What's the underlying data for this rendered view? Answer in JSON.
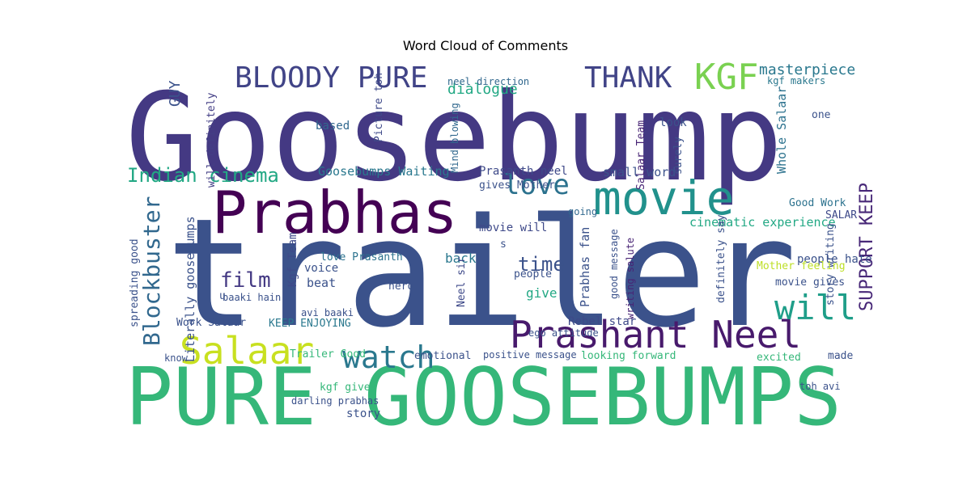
{
  "chart_data": {
    "type": "wordcloud",
    "title": "Word Cloud of Comments",
    "colormap": "viridis",
    "background": "#ffffff",
    "words": [
      {
        "text": "Goosebump",
        "color": "#443983"
      },
      {
        "text": "trailer",
        "color": "#3b528b"
      },
      {
        "text": "PURE GOOSEBUMPS",
        "color": "#35b779"
      },
      {
        "text": "Prabhas",
        "color": "#440154"
      },
      {
        "text": "movie",
        "color": "#21918c"
      },
      {
        "text": "Prashant Neel",
        "color": "#481a6c"
      },
      {
        "text": "Salaar",
        "color": "#c8e020"
      },
      {
        "text": "watch",
        "color": "#2a788e"
      },
      {
        "text": "will",
        "color": "#1f9e89"
      },
      {
        "text": "KGF",
        "color": "#7ad151"
      },
      {
        "text": "BLOODY PURE",
        "color": "#414487"
      },
      {
        "text": "THANK",
        "color": "#414487"
      },
      {
        "text": "love",
        "color": "#2c728e"
      },
      {
        "text": "Indian cinema",
        "color": "#22a884"
      },
      {
        "text": "Blockbuster",
        "color": "#31688e"
      },
      {
        "text": "film",
        "color": "#443983"
      },
      {
        "text": "time",
        "color": "#3b528b"
      },
      {
        "text": "SUPPORT KEEP",
        "color": "#482878"
      },
      {
        "text": "masterpiece",
        "color": "#2a788e"
      },
      {
        "text": "dialogue",
        "color": "#22a884"
      },
      {
        "text": "Goosebumps Waiting",
        "color": "#2a788e"
      },
      {
        "text": "Prasanth neel",
        "color": "#3e4989"
      },
      {
        "text": "cinematic experience",
        "color": "#22a884"
      },
      {
        "text": "Literally goosebumps",
        "color": "#3b528b"
      },
      {
        "text": "Prabhas fan",
        "color": "#3b528b"
      },
      {
        "text": "Whole Salaar",
        "color": "#2c728e"
      },
      {
        "text": "Salaar Team",
        "color": "#482475"
      },
      {
        "text": "Kgf Team",
        "color": "#3e4989"
      },
      {
        "text": "neel direction",
        "color": "#31688e"
      },
      {
        "text": "kgf makers",
        "color": "#2a788e"
      },
      {
        "text": "GUY",
        "color": "#3b528b"
      },
      {
        "text": "based",
        "color": "#31688e"
      },
      {
        "text": "will definitely",
        "color": "#433e85"
      },
      {
        "text": "Picture toh",
        "color": "#3e4989"
      },
      {
        "text": "Mind blowing",
        "color": "#31688e"
      },
      {
        "text": "small word",
        "color": "#3b528b"
      },
      {
        "text": "gives Mother",
        "color": "#3b528b"
      },
      {
        "text": "movie will",
        "color": "#3e4989"
      },
      {
        "text": "going",
        "color": "#31688e"
      },
      {
        "text": "spreading good",
        "color": "#3b528b"
      },
      {
        "text": "Good Work",
        "color": "#2c728e"
      },
      {
        "text": "SALAR",
        "color": "#3e4989"
      },
      {
        "text": "love Prasanth",
        "color": "#2c728e"
      },
      {
        "text": "voice",
        "color": "#3b528b"
      },
      {
        "text": "beat",
        "color": "#3b528b"
      },
      {
        "text": "back",
        "color": "#2a788e"
      },
      {
        "text": "people",
        "color": "#3b528b"
      },
      {
        "text": "give",
        "color": "#22a884"
      },
      {
        "text": "hero",
        "color": "#3b528b"
      },
      {
        "text": "Neel sir",
        "color": "#3e4989"
      },
      {
        "text": "good message",
        "color": "#3b528b"
      },
      {
        "text": "writing salute",
        "color": "#482475"
      },
      {
        "text": "definitely say",
        "color": "#3b528b"
      },
      {
        "text": "story writing",
        "color": "#3b528b"
      },
      {
        "text": "people hate",
        "color": "#3b528b"
      },
      {
        "text": "Mother feeling",
        "color": "#bddf26"
      },
      {
        "text": "movie gives",
        "color": "#3b528b"
      },
      {
        "text": "Work Salaar",
        "color": "#3b528b"
      },
      {
        "text": "KEEP ENJOYING",
        "color": "#2a788e"
      },
      {
        "text": "Rebel star",
        "color": "#3e4989"
      },
      {
        "text": "avi baaki",
        "color": "#3b528b"
      },
      {
        "text": "baaki hain",
        "color": "#3b528b"
      },
      {
        "text": "emotional",
        "color": "#3b528b"
      },
      {
        "text": "positive message",
        "color": "#3b528b"
      },
      {
        "text": "looking forward",
        "color": "#35b779"
      },
      {
        "text": "excited",
        "color": "#35b779"
      },
      {
        "text": "made",
        "color": "#3b528b"
      },
      {
        "text": "Trailer Good",
        "color": "#35b779"
      },
      {
        "text": "kgf gives",
        "color": "#35b779"
      },
      {
        "text": "story",
        "color": "#3b528b"
      },
      {
        "text": "darling prabhas",
        "color": "#3b528b"
      },
      {
        "text": "toh avi",
        "color": "#3b528b"
      },
      {
        "text": "ego attitude",
        "color": "#3b528b"
      },
      {
        "text": "surely",
        "color": "#3b528b"
      },
      {
        "text": "look",
        "color": "#3b528b"
      },
      {
        "text": "one",
        "color": "#3b528b"
      },
      {
        "text": "know",
        "color": "#3b528b"
      },
      {
        "text": "u",
        "color": "#3b528b"
      },
      {
        "text": "s",
        "color": "#3b528b"
      }
    ]
  }
}
